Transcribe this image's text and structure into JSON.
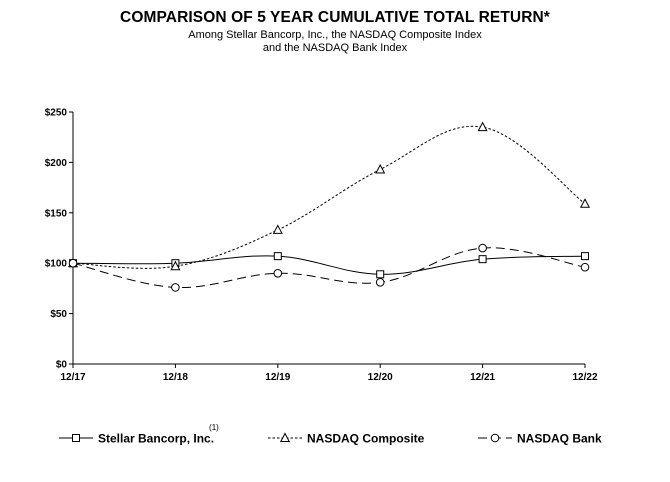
{
  "chart_data": {
    "type": "line",
    "title": "COMPARISON OF 5 YEAR CUMULATIVE TOTAL RETURN*",
    "subtitle_lines": [
      "Among Stellar Bancorp, Inc., the NASDAQ Composite Index",
      "and the NASDAQ Bank Index"
    ],
    "categories": [
      "12/17",
      "12/18",
      "12/19",
      "12/20",
      "12/21",
      "12/22"
    ],
    "ylim": [
      0,
      250
    ],
    "yticks": [
      0,
      50,
      100,
      150,
      200,
      250
    ],
    "ytick_labels": [
      "$0",
      "$50",
      "$100",
      "$150",
      "$200",
      "$250"
    ],
    "grid": false,
    "legend_position": "bottom",
    "series": [
      {
        "name": "Stellar Bancorp, Inc.",
        "footnote": "(1)",
        "marker": "square",
        "line": "solid",
        "values": [
          100,
          100,
          107,
          89,
          104,
          107
        ]
      },
      {
        "name": "NASDAQ Composite",
        "marker": "triangle",
        "line": "dotted",
        "values": [
          100,
          97,
          133,
          193,
          235,
          159
        ]
      },
      {
        "name": "NASDAQ Bank",
        "marker": "circle",
        "line": "dashed",
        "values": [
          100,
          76,
          90,
          81,
          115,
          96
        ]
      }
    ]
  }
}
